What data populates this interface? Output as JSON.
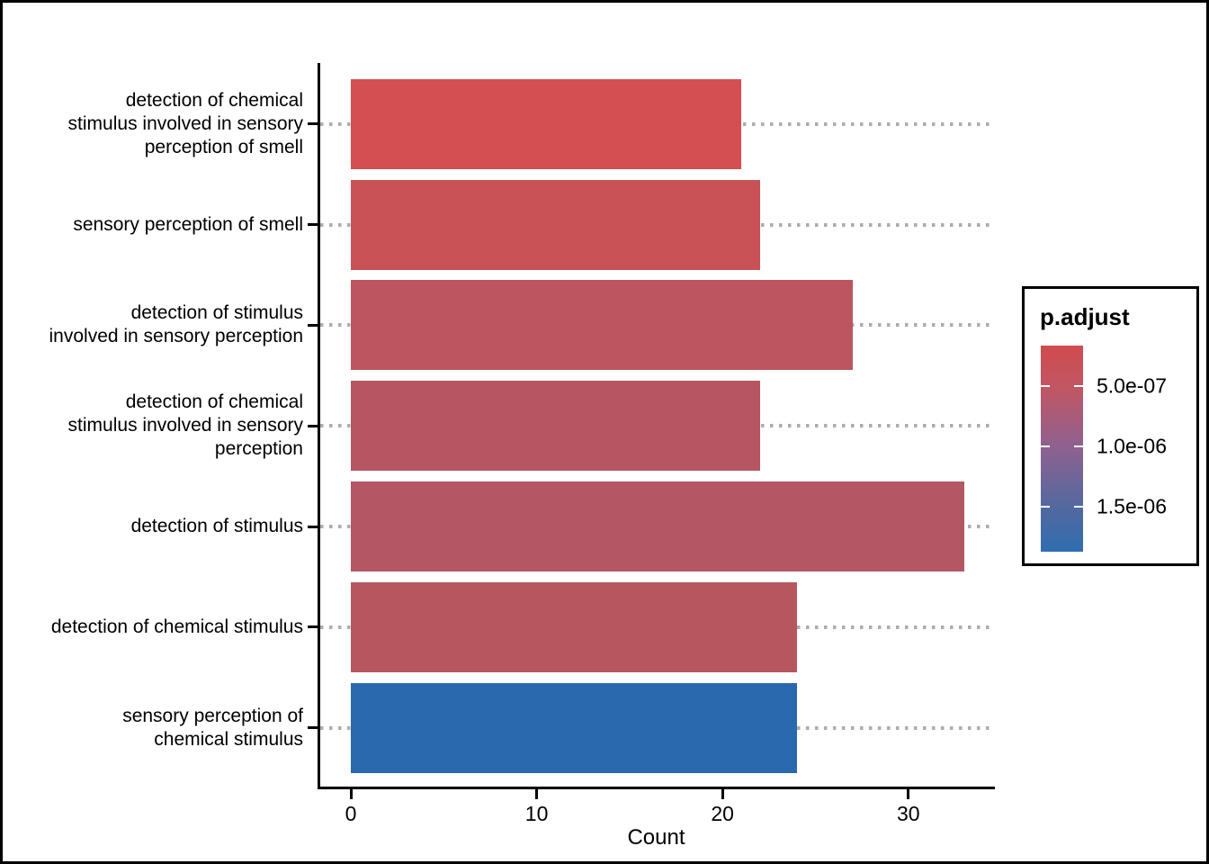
{
  "chart_data": {
    "type": "bar",
    "orientation": "horizontal",
    "title": "",
    "xlabel": "Count",
    "x_ticks": [
      0,
      10,
      20,
      30
    ],
    "xlim": [
      0,
      34.7
    ],
    "grid": "dotted-horizontal",
    "categories": [
      "detection of chemical\nstimulus involved in sensory\nperception of smell",
      "sensory perception of smell",
      "detection of stimulus\ninvolved in sensory perception",
      "detection of chemical\nstimulus involved in sensory\nperception",
      "detection of stimulus",
      "detection of chemical stimulus",
      "sensory perception of\nchemical stimulus"
    ],
    "values": [
      21,
      22,
      27,
      22,
      33,
      24,
      24
    ],
    "bar_colors": [
      "#d44f51",
      "#c75357",
      "#bc5560",
      "#b75562",
      "#b45663",
      "#b85660",
      "#2b69ae"
    ],
    "legend": {
      "title": "p.adjust",
      "position": "right",
      "tick_labels": [
        "5.0e-07",
        "1.0e-06",
        "1.5e-06"
      ],
      "gradient_stops": [
        {
          "color": "#d04b4f",
          "pos": 0
        },
        {
          "color": "#c25663",
          "pos": 20
        },
        {
          "color": "#8f6190",
          "pos": 49
        },
        {
          "color": "#54689f",
          "pos": 78
        },
        {
          "color": "#2f6db0",
          "pos": 100
        }
      ]
    }
  },
  "colors": {
    "axis": "#000000",
    "grid_dots": "#adadad",
    "background": "#ffffff",
    "border": "#000000",
    "legend_tick_mark": "#ffffff"
  }
}
